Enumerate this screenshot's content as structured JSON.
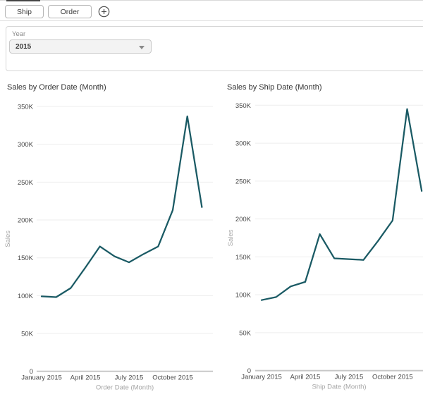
{
  "tab_bar": {
    "tabs": [
      {
        "label": "Ship"
      },
      {
        "label": "Order"
      }
    ],
    "add_icon": "plus-circle-icon"
  },
  "filter_panel": {
    "label": "Year",
    "value": "2015"
  },
  "colors": {
    "line": "#1a5a64",
    "grid": "#ededed",
    "baseline": "#c8c8c8",
    "tick_text": "#4a4a4a",
    "muted_text": "#a6a6a6",
    "title_text": "#333333"
  },
  "chart_data": [
    {
      "type": "line",
      "title": "Sales by Order Date (Month)",
      "xlabel": "Order Date (Month)",
      "ylabel": "Sales",
      "categories": [
        "January 2015",
        "February 2015",
        "March 2015",
        "April 2015",
        "May 2015",
        "June 2015",
        "July 2015",
        "August 2015",
        "September 2015",
        "October 2015",
        "November 2015",
        "December 2015"
      ],
      "x_tick_labels": [
        "January 2015",
        "April 2015",
        "July 2015",
        "October 2015"
      ],
      "values": [
        99000,
        98000,
        110000,
        137000,
        165000,
        152000,
        144000,
        155000,
        165000,
        213000,
        337000,
        217000
      ],
      "ylim": [
        0,
        350000
      ],
      "ytick_interval": 50000,
      "ytick_labels": [
        "0",
        "50K",
        "100K",
        "150K",
        "200K",
        "250K",
        "300K",
        "350K"
      ],
      "grid": true,
      "legend": false
    },
    {
      "type": "line",
      "title": "Sales by Ship Date (Month)",
      "xlabel": "Ship Date (Month)",
      "ylabel": "Sales",
      "categories": [
        "January 2015",
        "February 2015",
        "March 2015",
        "April 2015",
        "May 2015",
        "June 2015",
        "July 2015",
        "August 2015",
        "September 2015",
        "October 2015",
        "November 2015",
        "December 2015"
      ],
      "x_tick_labels": [
        "January 2015",
        "April 2015",
        "July 2015",
        "October 2015"
      ],
      "values": [
        93000,
        97000,
        111000,
        117000,
        180000,
        148000,
        147000,
        146000,
        171000,
        198000,
        345000,
        237000
      ],
      "ylim": [
        0,
        350000
      ],
      "ytick_interval": 50000,
      "ytick_labels": [
        "0",
        "50K",
        "100K",
        "150K",
        "200K",
        "250K",
        "300K",
        "350K"
      ],
      "grid": true,
      "legend": false
    }
  ]
}
